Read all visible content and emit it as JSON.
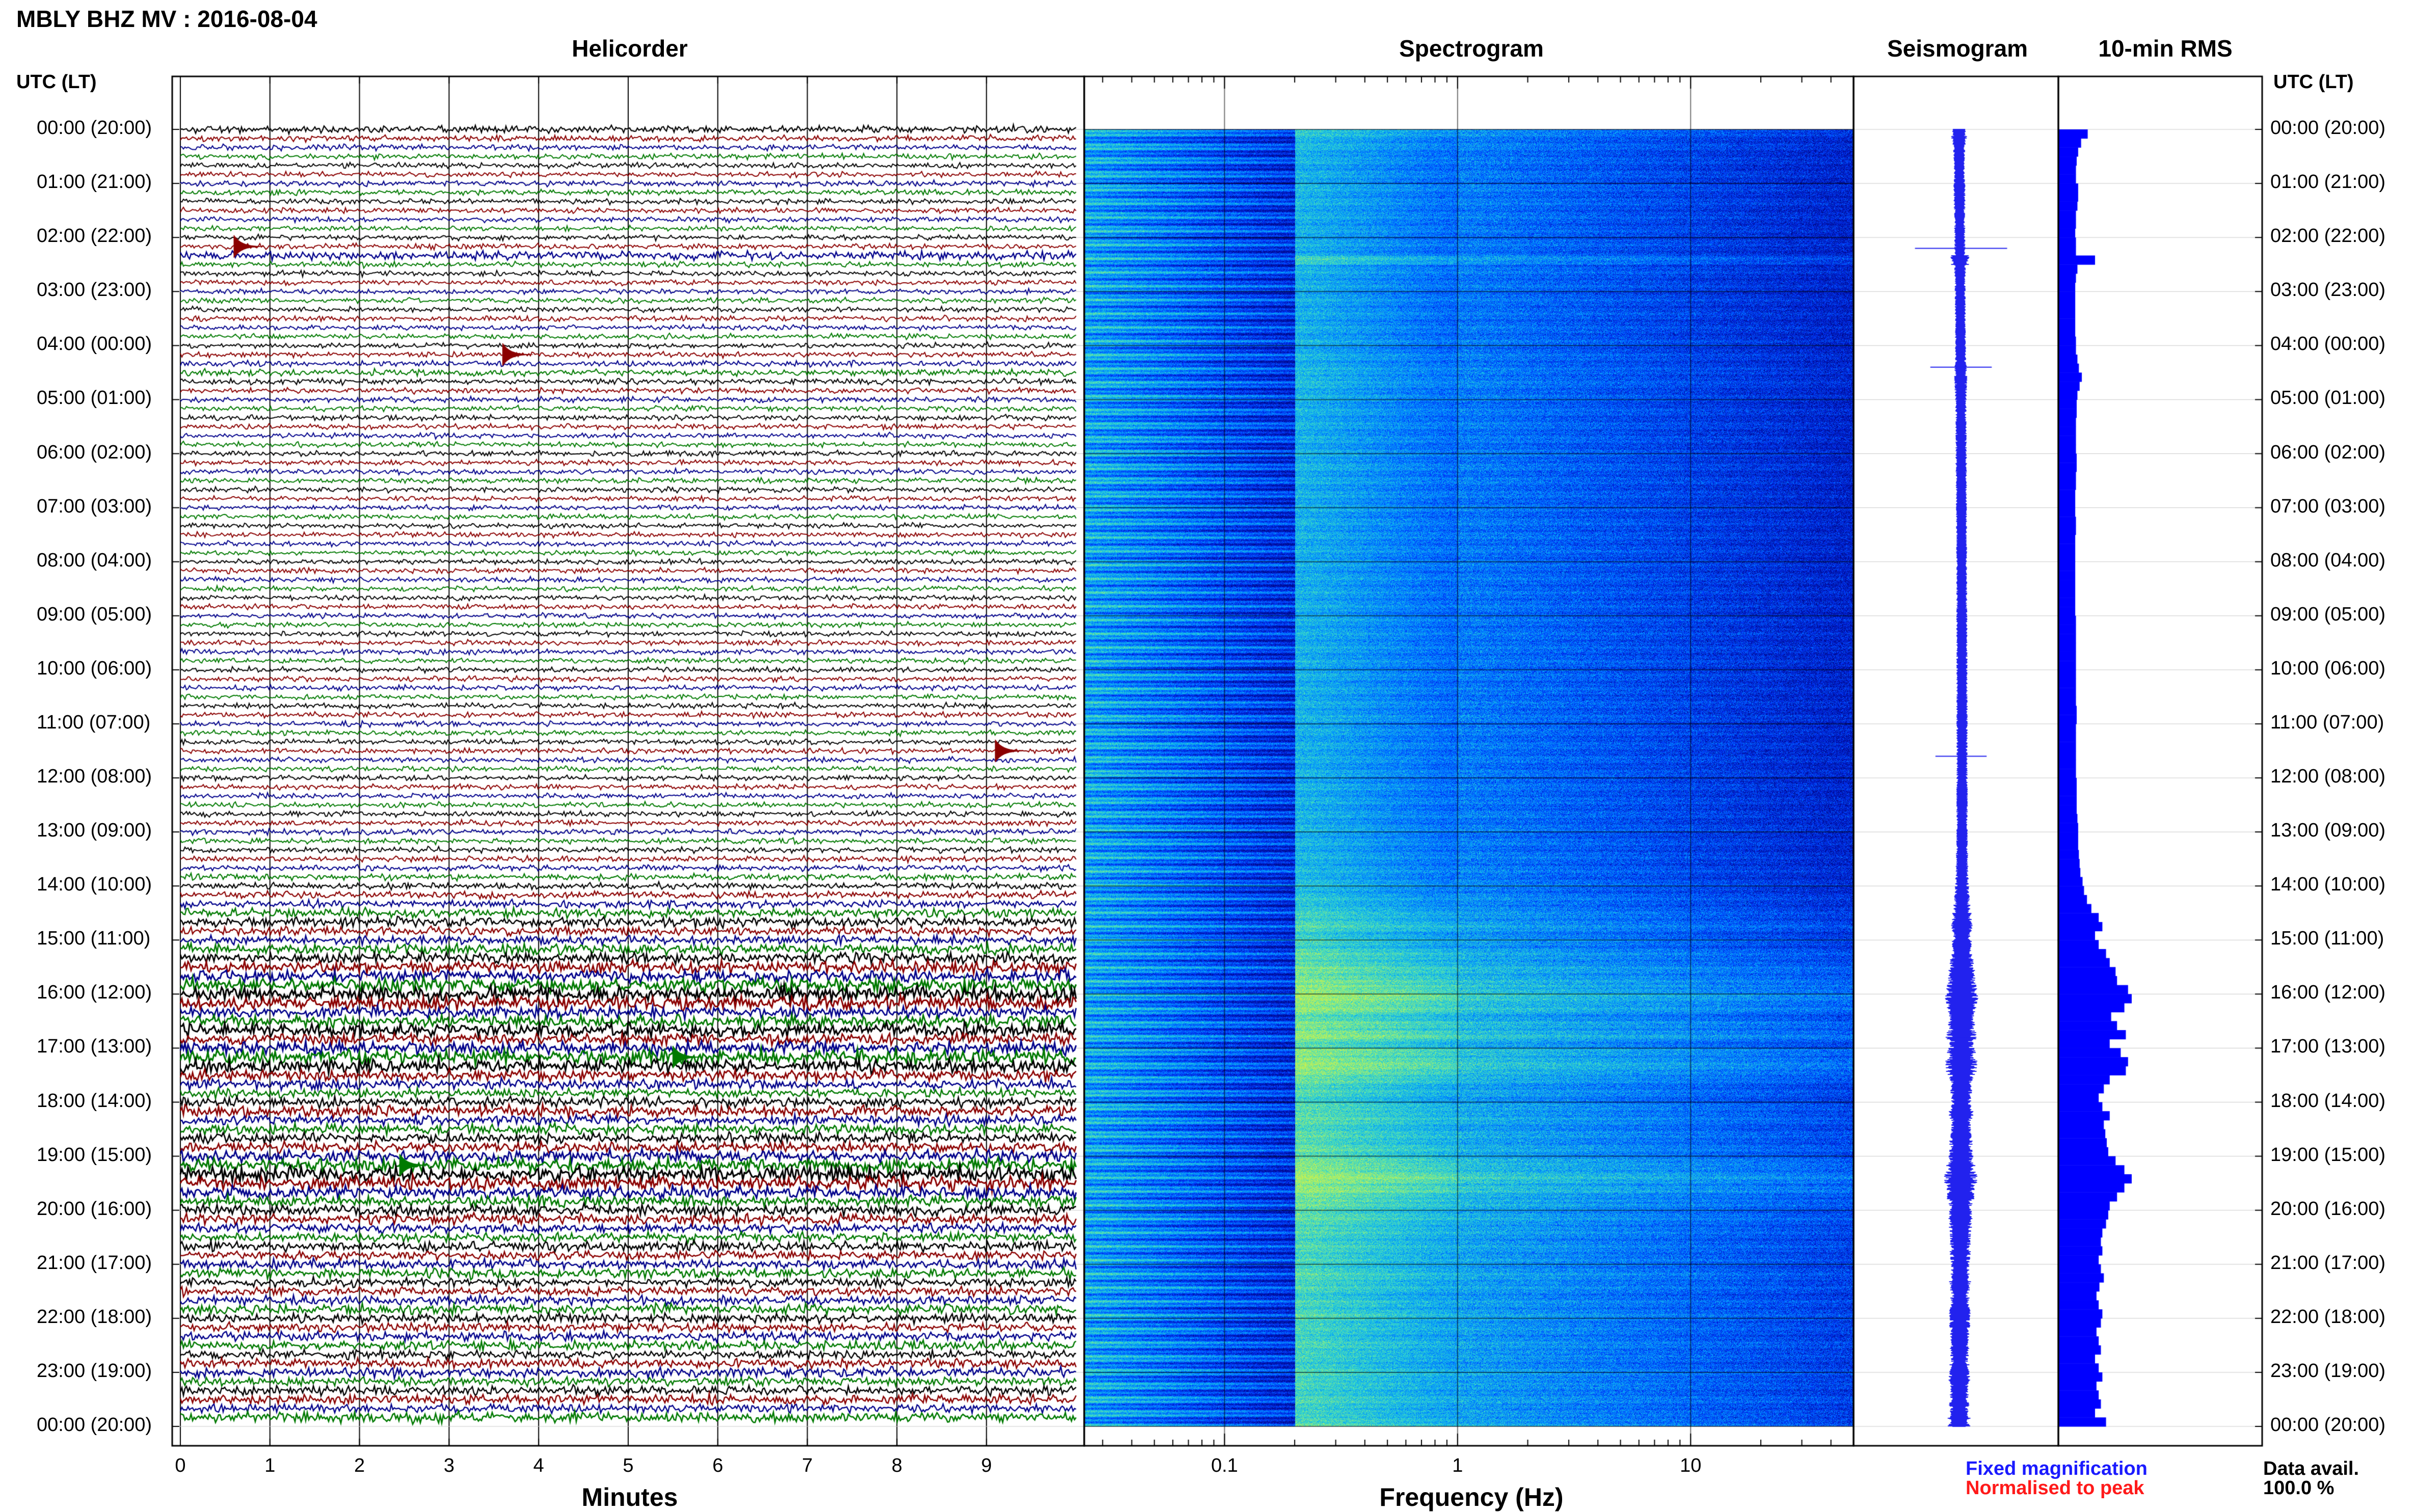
{
  "title": "MBLY BHZ MV : 2016-08-04",
  "panels": {
    "helicorder": "Helicorder",
    "spectrogram": "Spectrogram",
    "seismogram": "Seismogram",
    "rms": "10-min RMS"
  },
  "axis_header_left": "UTC (LT)",
  "axis_header_right": "UTC (LT)",
  "xlabels": {
    "helicorder": "Minutes",
    "spectrogram": "Frequency (Hz)"
  },
  "legend": {
    "fixed": "Fixed magnification",
    "fixed_color": "#1a1aff",
    "normalised": "Normalised to peak",
    "normalised_color": "#ff1a1a"
  },
  "data_avail": {
    "label": "Data avail.",
    "value": "100.0 %"
  },
  "colors": {
    "trace_cycle": [
      "#000000",
      "#8b0000",
      "#00008b",
      "#007a00"
    ],
    "rms_bar": "#0000ff",
    "seismogram": "#2222ee"
  },
  "chart_data": [
    {
      "type": "line",
      "name": "helicorder",
      "xlabel": "Minutes",
      "x_ticks": [
        "0",
        "1",
        "2",
        "3",
        "4",
        "5",
        "6",
        "7",
        "8",
        "9"
      ],
      "xlim": [
        0,
        10
      ],
      "y_ticks": [
        "00:00 (20:00)",
        "01:00 (21:00)",
        "02:00 (22:00)",
        "03:00 (23:00)",
        "04:00 (00:00)",
        "05:00 (01:00)",
        "06:00 (02:00)",
        "07:00 (03:00)",
        "08:00 (04:00)",
        "09:00 (05:00)",
        "10:00 (06:00)",
        "11:00 (07:00)",
        "12:00 (08:00)",
        "13:00 (09:00)",
        "14:00 (10:00)",
        "15:00 (11:00)",
        "16:00 (12:00)",
        "17:00 (13:00)",
        "18:00 (14:00)",
        "19:00 (15:00)",
        "20:00 (16:00)",
        "21:00 (17:00)",
        "22:00 (18:00)",
        "23:00 (19:00)",
        "00:00 (20:00)"
      ],
      "lines": 144,
      "minutes_per_line": 10,
      "events": [
        {
          "hour": 2.17,
          "minute": 0.6
        },
        {
          "hour": 4.33,
          "minute": 3.6
        },
        {
          "hour": 11.5,
          "minute": 9.1
        },
        {
          "hour": 17.33,
          "minute": 5.5
        },
        {
          "hour": 19.17,
          "minute": 2.45
        }
      ]
    },
    {
      "type": "heatmap",
      "name": "spectrogram",
      "xlabel": "Frequency (Hz)",
      "x_scale": "log",
      "x_ticks": [
        "0.1",
        "1",
        "10"
      ],
      "xlim": [
        0.025,
        50
      ],
      "ylim_hours": [
        0,
        24
      ],
      "colormap": [
        "#000a8c",
        "#0032ff",
        "#00a0ff",
        "#40e0c0",
        "#c8f050"
      ]
    },
    {
      "type": "line",
      "name": "seismogram",
      "ylim_hours": [
        0,
        24
      ],
      "spikes": [
        {
          "hour": 2.2,
          "amplitude": 0.45
        },
        {
          "hour": 4.4,
          "amplitude": 0.3
        },
        {
          "hour": 11.6,
          "amplitude": 0.25
        },
        {
          "hour": 16.8,
          "amplitude": 0.15
        },
        {
          "hour": 19.0,
          "amplitude": 0.12
        }
      ]
    },
    {
      "type": "bar",
      "name": "10-min RMS",
      "orientation": "horizontal",
      "ylim_hours": [
        0,
        24
      ],
      "values": [
        0.4,
        0.31,
        0.27,
        0.25,
        0.24,
        0.24,
        0.27,
        0.27,
        0.26,
        0.24,
        0.24,
        0.23,
        0.24,
        0.24,
        0.5,
        0.26,
        0.24,
        0.23,
        0.23,
        0.23,
        0.23,
        0.23,
        0.23,
        0.24,
        0.24,
        0.26,
        0.28,
        0.32,
        0.29,
        0.26,
        0.25,
        0.25,
        0.24,
        0.24,
        0.24,
        0.24,
        0.25,
        0.25,
        0.24,
        0.24,
        0.23,
        0.23,
        0.23,
        0.24,
        0.24,
        0.23,
        0.23,
        0.23,
        0.23,
        0.23,
        0.23,
        0.23,
        0.23,
        0.23,
        0.24,
        0.24,
        0.24,
        0.24,
        0.24,
        0.24,
        0.24,
        0.24,
        0.24,
        0.24,
        0.25,
        0.25,
        0.24,
        0.24,
        0.24,
        0.24,
        0.24,
        0.24,
        0.25,
        0.25,
        0.25,
        0.25,
        0.26,
        0.27,
        0.27,
        0.27,
        0.28,
        0.29,
        0.3,
        0.33,
        0.35,
        0.39,
        0.45,
        0.55,
        0.6,
        0.5,
        0.55,
        0.65,
        0.7,
        0.78,
        0.8,
        0.95,
        1.0,
        0.9,
        0.72,
        0.8,
        0.92,
        0.7,
        0.85,
        0.95,
        0.92,
        0.7,
        0.62,
        0.55,
        0.6,
        0.7,
        0.62,
        0.64,
        0.66,
        0.68,
        0.78,
        0.9,
        1.0,
        0.9,
        0.8,
        0.7,
        0.68,
        0.65,
        0.6,
        0.58,
        0.6,
        0.55,
        0.58,
        0.62,
        0.56,
        0.52,
        0.55,
        0.6,
        0.58,
        0.52,
        0.55,
        0.58,
        0.5,
        0.55,
        0.6,
        0.52,
        0.55,
        0.58,
        0.5,
        0.65
      ]
    }
  ]
}
